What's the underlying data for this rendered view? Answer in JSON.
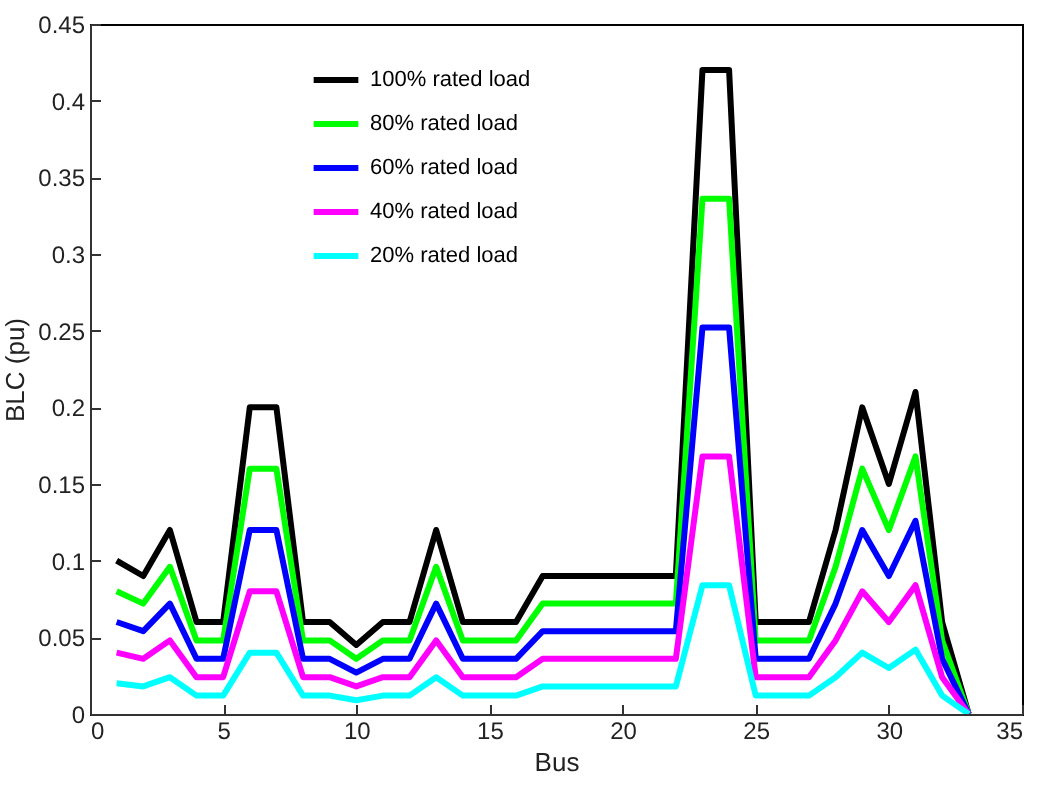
{
  "chart_data": {
    "type": "line",
    "xlabel": "Bus",
    "ylabel": "BLC (pu)",
    "x": [
      1,
      2,
      3,
      4,
      5,
      6,
      7,
      8,
      9,
      10,
      11,
      12,
      13,
      14,
      15,
      16,
      17,
      18,
      19,
      20,
      21,
      22,
      23,
      24,
      25,
      26,
      27,
      28,
      29,
      30,
      31,
      32,
      33
    ],
    "series": [
      {
        "name": "100% rated load",
        "color": "#000000",
        "values": [
          0.1,
          0.09,
          0.12,
          0.06,
          0.06,
          0.2,
          0.2,
          0.06,
          0.06,
          0.045,
          0.06,
          0.06,
          0.12,
          0.06,
          0.06,
          0.06,
          0.09,
          0.09,
          0.09,
          0.09,
          0.09,
          0.09,
          0.42,
          0.42,
          0.06,
          0.06,
          0.06,
          0.12,
          0.2,
          0.15,
          0.21,
          0.06,
          0
        ]
      },
      {
        "name": " 80% rated load",
        "color": "#00ff00",
        "values": [
          0.08,
          0.072,
          0.096,
          0.048,
          0.048,
          0.16,
          0.16,
          0.048,
          0.048,
          0.036,
          0.048,
          0.048,
          0.096,
          0.048,
          0.048,
          0.048,
          0.072,
          0.072,
          0.072,
          0.072,
          0.072,
          0.072,
          0.336,
          0.336,
          0.048,
          0.048,
          0.048,
          0.096,
          0.16,
          0.12,
          0.168,
          0.048,
          0
        ]
      },
      {
        "name": "60%  rated load",
        "color": "#0000ff",
        "values": [
          0.06,
          0.054,
          0.072,
          0.036,
          0.036,
          0.12,
          0.12,
          0.036,
          0.036,
          0.027,
          0.036,
          0.036,
          0.072,
          0.036,
          0.036,
          0.036,
          0.054,
          0.054,
          0.054,
          0.054,
          0.054,
          0.054,
          0.252,
          0.252,
          0.036,
          0.036,
          0.036,
          0.072,
          0.12,
          0.09,
          0.126,
          0.036,
          0
        ]
      },
      {
        "name": "40% rated load",
        "color": "#ff00ff",
        "values": [
          0.04,
          0.036,
          0.048,
          0.024,
          0.024,
          0.08,
          0.08,
          0.024,
          0.024,
          0.018,
          0.024,
          0.024,
          0.048,
          0.024,
          0.024,
          0.024,
          0.036,
          0.036,
          0.036,
          0.036,
          0.036,
          0.036,
          0.168,
          0.168,
          0.024,
          0.024,
          0.024,
          0.048,
          0.08,
          0.06,
          0.084,
          0.024,
          0
        ]
      },
      {
        "name": "20%  rated load",
        "color": "#00ffff",
        "values": [
          0.02,
          0.018,
          0.024,
          0.012,
          0.012,
          0.04,
          0.04,
          0.012,
          0.012,
          0.009,
          0.012,
          0.012,
          0.024,
          0.012,
          0.012,
          0.012,
          0.018,
          0.018,
          0.018,
          0.018,
          0.018,
          0.018,
          0.084,
          0.084,
          0.012,
          0.012,
          0.012,
          0.024,
          0.04,
          0.03,
          0.042,
          0.012,
          0
        ]
      }
    ],
    "xlim": [
      0,
      35
    ],
    "xticks": [
      0,
      5,
      10,
      15,
      20,
      25,
      30,
      35
    ],
    "ylim": [
      0,
      0.45
    ],
    "yticks": [
      0,
      0.05,
      0.1,
      0.15,
      0.2,
      0.25,
      0.3,
      0.35,
      0.4,
      0.45
    ],
    "grid": false,
    "legend": "top left",
    "line_style": "solid",
    "marker": "none"
  }
}
